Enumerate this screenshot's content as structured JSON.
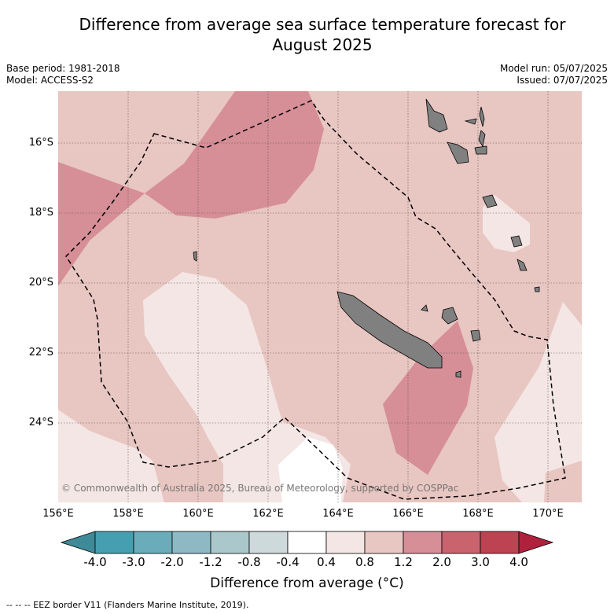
{
  "title_line1": "Difference from average sea surface temperature forecast for",
  "title_line2": "August 2025",
  "base_period": "Base period: 1981-2018",
  "model": "Model: ACCESS-S2",
  "model_run": "Model run: 05/07/2025",
  "issued": "Issued: 07/07/2025",
  "copyright": "© Commonwealth of Australia 2025, Bureau of Meteorology, supported by COSPPac",
  "lat_labels": [
    "16°S",
    "18°S",
    "20°S",
    "22°S",
    "24°S"
  ],
  "lon_labels": [
    "156°E",
    "158°E",
    "160°E",
    "162°E",
    "164°E",
    "166°E",
    "168°E",
    "170°E"
  ],
  "colorbar": {
    "ticks": [
      "-4.0",
      "-3.0",
      "-2.0",
      "-1.2",
      "-0.8",
      "-0.4",
      "0.4",
      "0.8",
      "1.2",
      "2.0",
      "3.0",
      "4.0"
    ],
    "colors": [
      "#469fb0",
      "#6bacbb",
      "#8eb9c4",
      "#aac8cc",
      "#cdd9da",
      "#ffffff",
      "#f4e6e4",
      "#e8c6c1",
      "#d68e97",
      "#c9636e",
      "#bd4252"
    ],
    "under_color": "#3f8a98",
    "over_color": "#b0213e",
    "title": "Difference from average (°C)"
  },
  "map_colors": {
    "base": "#e8c6c1",
    "warm": "#d68e97",
    "cool": "#f4e6e4",
    "neutral": "#ffffff",
    "land": "#808080"
  },
  "footnote": "-- -- -- EEZ border V11 (Flanders Marine Institute, 2019)."
}
